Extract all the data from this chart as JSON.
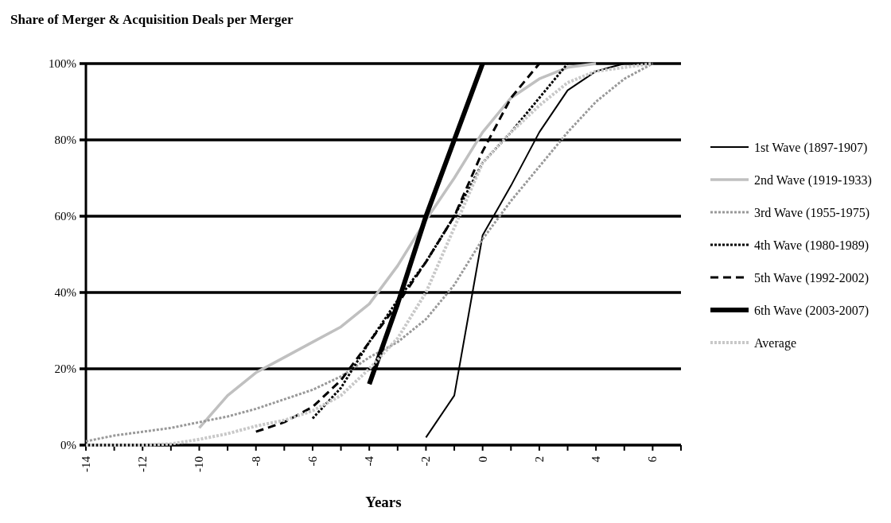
{
  "chart_data": {
    "type": "line",
    "title": "Share of Merger & Acquisition Deals per Merger",
    "xlabel": "Years",
    "xlim": [
      -14,
      7
    ],
    "xticks": [
      -14,
      {
        "value": -13,
        "label": null
      },
      -12,
      {
        "value": -11,
        "label": null
      },
      -10,
      {
        "value": -9,
        "label": null
      },
      -8,
      {
        "value": -7,
        "label": null
      },
      -6,
      {
        "value": -5,
        "label": null
      },
      -4,
      {
        "value": -3,
        "label": null
      },
      -2,
      {
        "value": -1,
        "label": null
      },
      0,
      {
        "value": 1,
        "label": null
      },
      2,
      {
        "value": 3,
        "label": null
      },
      4,
      {
        "value": 5,
        "label": null
      },
      6,
      {
        "value": 7,
        "label": null
      }
    ],
    "ylim": [
      0,
      100
    ],
    "yticks": [
      {
        "value": 0,
        "label": "0%"
      },
      {
        "value": 20,
        "label": "20%"
      },
      {
        "value": 40,
        "label": "40%"
      },
      {
        "value": 60,
        "label": "60%"
      },
      {
        "value": 80,
        "label": "80%"
      },
      {
        "value": 100,
        "label": "100%"
      }
    ],
    "grid": "y",
    "legend": "right",
    "marker": "none",
    "series": [
      {
        "name": "1st Wave (1897-1907)",
        "color": "#000000",
        "line_style": "solid",
        "x": [
          -2,
          -1,
          0,
          1,
          2,
          3,
          4,
          5
        ],
        "values": [
          2,
          13,
          55,
          68,
          82,
          93,
          98,
          100
        ]
      },
      {
        "name": "2nd Wave (1919-1933)",
        "color": "#c0c0c0",
        "line_style": "solid",
        "x": [
          -10,
          -9,
          -8,
          -7,
          -6,
          -5,
          -4,
          -3,
          -2,
          -1,
          0,
          1,
          2,
          3,
          4
        ],
        "values": [
          4.5,
          13,
          19,
          23,
          27,
          31,
          37,
          47,
          59,
          70,
          82,
          91,
          96,
          99,
          100
        ]
      },
      {
        "name": "3rd Wave (1955-1975)",
        "color": "#999999",
        "line_style": "dotted",
        "x": [
          -14,
          -13,
          -12,
          -11,
          -10,
          -9,
          -8,
          -7,
          -6,
          -5,
          -4,
          -3,
          -2,
          -1,
          0,
          1,
          2,
          3,
          4,
          5,
          6
        ],
        "values": [
          1,
          2.5,
          3.5,
          4.5,
          6,
          7.5,
          9.5,
          12,
          14.5,
          18,
          23,
          27,
          33,
          42,
          54,
          64,
          73,
          82,
          90,
          96,
          100
        ]
      },
      {
        "name": "4th Wave (1980-1989)",
        "color": "#000000",
        "line_style": "dotted",
        "x": [
          -6,
          -5,
          -4,
          -3,
          -2,
          -1,
          0,
          1,
          2,
          3
        ],
        "values": [
          7,
          15,
          27,
          38,
          48,
          60,
          74,
          82,
          91,
          100
        ]
      },
      {
        "name": "5th Wave (1992-2002)",
        "color": "#000000",
        "line_style": "dashed",
        "x": [
          -8,
          -7,
          -6,
          -5,
          -4,
          -3,
          -2,
          -1,
          0,
          1,
          2
        ],
        "values": [
          3.5,
          6,
          10,
          17,
          27,
          37,
          48,
          60,
          77,
          91,
          100
        ]
      },
      {
        "name": "6th Wave (2003-2007)",
        "color": "#000000",
        "line_style": "solid",
        "x": [
          -4,
          -3,
          -2,
          -1,
          0
        ],
        "values": [
          16,
          37,
          60,
          80,
          100
        ]
      },
      {
        "name": "Average",
        "color": "#c8c8c8",
        "line_style": "dotted",
        "x": [
          -14,
          -13,
          -12,
          -11,
          -10,
          -9,
          -8,
          -7,
          -6,
          -5,
          -4,
          -3,
          -2,
          -1,
          0,
          1,
          2,
          3,
          4,
          5,
          6
        ],
        "values": [
          0,
          0,
          0,
          0.3,
          1.5,
          3,
          5,
          6.5,
          9,
          13,
          20,
          28,
          40,
          57,
          74,
          82,
          89,
          95,
          98,
          99,
          100
        ]
      }
    ]
  }
}
